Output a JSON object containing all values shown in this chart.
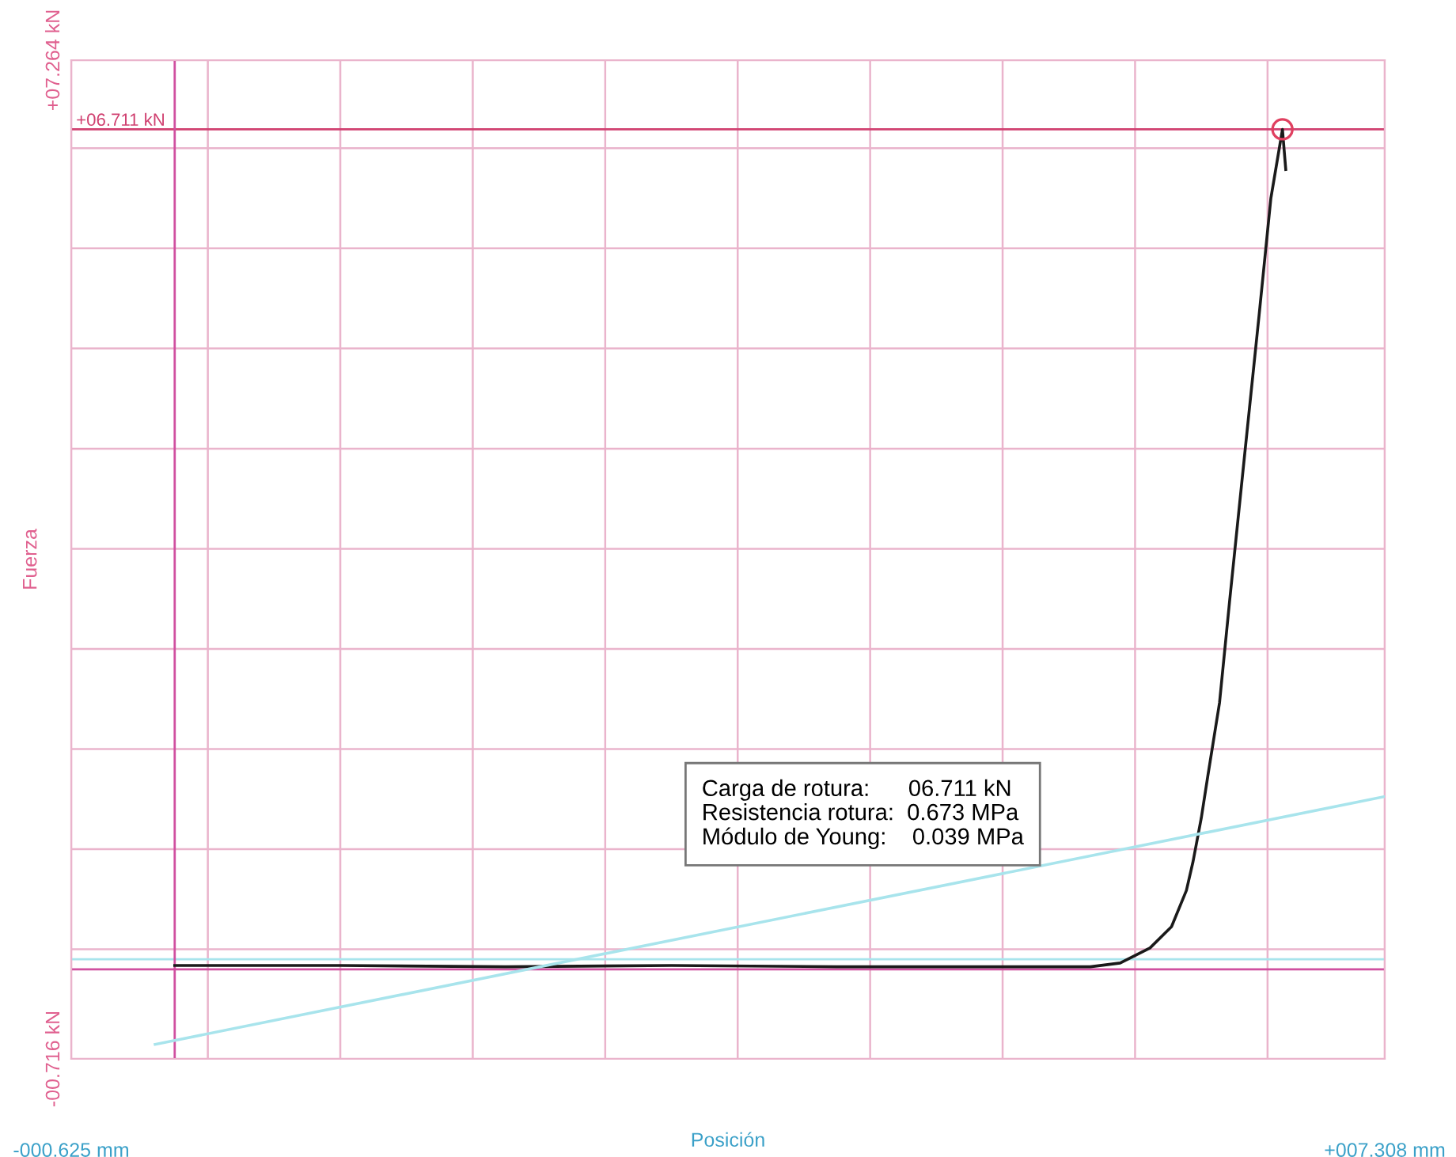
{
  "chart_data": {
    "type": "line",
    "xlabel": "Posición",
    "ylabel": "Fuerza",
    "xlim": [
      -0.625,
      7.308
    ],
    "ylim": [
      -0.716,
      7.264
    ],
    "xticks": [
      {
        "value": -0.625,
        "label": "-000.625 mm"
      },
      {
        "value": 0.2,
        "label": null
      },
      {
        "value": 1.0,
        "label": null
      },
      {
        "value": 1.8,
        "label": null
      },
      {
        "value": 2.6,
        "label": null
      },
      {
        "value": 3.4,
        "label": null
      },
      {
        "value": 4.2,
        "label": null
      },
      {
        "value": 5.0,
        "label": null
      },
      {
        "value": 5.8,
        "label": null
      },
      {
        "value": 6.6,
        "label": null
      },
      {
        "value": 7.308,
        "label": "+007.308 mm"
      }
    ],
    "yticks": [
      {
        "value": -0.716,
        "label": "-00.716 kN"
      },
      {
        "value": 0.16,
        "label": null
      },
      {
        "value": 0.96,
        "label": null
      },
      {
        "value": 1.76,
        "label": null
      },
      {
        "value": 2.56,
        "label": null
      },
      {
        "value": 3.36,
        "label": null
      },
      {
        "value": 4.16,
        "label": null
      },
      {
        "value": 4.96,
        "label": null
      },
      {
        "value": 5.76,
        "label": null
      },
      {
        "value": 6.56,
        "label": null
      },
      {
        "value": 7.264,
        "label": "+07.264 kN"
      }
    ],
    "grid": true,
    "series": [
      {
        "color": "#1a1a1a",
        "marker": "none",
        "x": [
          0.0,
          1.0,
          2.0,
          3.0,
          4.0,
          5.0,
          5.53,
          5.71,
          5.89,
          6.02,
          6.11,
          6.15,
          6.2,
          6.24,
          6.31,
          6.37,
          6.46,
          6.55,
          6.62,
          6.69,
          6.71
        ],
        "values": [
          0.03,
          0.03,
          0.02,
          0.03,
          0.02,
          0.02,
          0.02,
          0.05,
          0.17,
          0.34,
          0.63,
          0.86,
          1.21,
          1.55,
          2.13,
          2.93,
          4.09,
          5.24,
          6.16,
          6.71,
          6.39
        ]
      },
      {
        "type": "line",
        "color": "#a8e4ec",
        "marker": "none",
        "x": [
          -0.118,
          7.308
        ],
        "values": [
          -0.6,
          1.38
        ]
      },
      {
        "type": "scatter",
        "color": "#e04060",
        "marker": "circle",
        "x": [
          6.69
        ],
        "values": [
          6.711
        ]
      }
    ],
    "ref_lines": [
      {
        "axis": "y",
        "value": 6.711,
        "label": "+06.711 kN",
        "color": "#d04070"
      },
      {
        "axis": "y",
        "value": 0.0,
        "color": "#d050a0"
      },
      {
        "axis": "y",
        "value": 0.08,
        "color": "#a8e4ec"
      },
      {
        "axis": "x",
        "value": 0.0,
        "color": "#d050a0"
      }
    ],
    "annotations": [
      "Carga de rotura:      06.711 kN\nResistencia rotura:  0.673 MPa\nMódulo de Young:    0.039 MPa"
    ]
  }
}
